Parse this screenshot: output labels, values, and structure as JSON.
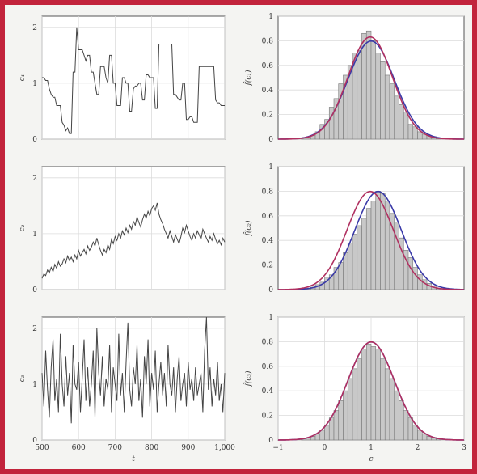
{
  "chart_data": [
    {
      "type": "line",
      "panel": "left-top",
      "xlabel": "t",
      "ylabel": "c₁",
      "xlim": [
        500,
        1000
      ],
      "ylim": [
        0,
        2.2
      ],
      "yticks": [
        0,
        1,
        2
      ],
      "xticks": [
        500,
        600,
        700,
        800,
        900,
        1000
      ],
      "x_tick_labels": [],
      "grid": true,
      "line_color": "#444444",
      "series": [
        {
          "x": [
            500,
            505,
            510,
            515,
            520,
            525,
            530,
            535,
            540,
            545,
            550,
            555,
            560,
            565,
            570,
            575,
            580,
            585,
            590,
            595,
            600,
            605,
            610,
            615,
            620,
            625,
            630,
            635,
            640,
            645,
            650,
            655,
            660,
            665,
            670,
            675,
            680,
            685,
            690,
            695,
            700,
            705,
            710,
            715,
            720,
            725,
            730,
            735,
            740,
            745,
            750,
            755,
            760,
            765,
            770,
            775,
            780,
            785,
            790,
            795,
            800,
            805,
            810,
            815,
            820,
            825,
            830,
            835,
            840,
            845,
            850,
            855,
            860,
            865,
            870,
            875,
            880,
            885,
            890,
            895,
            900,
            905,
            910,
            915,
            920,
            925,
            930,
            935,
            940,
            945,
            950,
            955,
            960,
            965,
            970,
            975,
            980,
            985,
            990,
            995,
            1000
          ],
          "values": [
            1.1,
            1.1,
            1.05,
            1.05,
            0.9,
            0.8,
            0.75,
            0.75,
            0.6,
            0.6,
            0.6,
            0.3,
            0.25,
            0.15,
            0.2,
            0.1,
            0.1,
            1.2,
            1.2,
            2.0,
            1.6,
            1.6,
            1.6,
            1.5,
            1.4,
            1.5,
            1.5,
            1.2,
            1.2,
            1.0,
            0.8,
            0.8,
            1.3,
            1.3,
            1.3,
            1.1,
            1.0,
            1.5,
            1.5,
            1.0,
            1.0,
            0.6,
            0.6,
            0.6,
            1.1,
            1.1,
            1.0,
            1.0,
            0.5,
            0.5,
            0.9,
            0.95,
            0.95,
            1.0,
            1.0,
            0.7,
            0.7,
            1.15,
            1.15,
            1.1,
            1.1,
            1.1,
            0.55,
            0.55,
            1.7,
            1.7,
            1.7,
            1.7,
            1.7,
            1.7,
            1.7,
            1.7,
            0.8,
            0.8,
            0.75,
            0.7,
            0.7,
            1.0,
            1.0,
            0.35,
            0.35,
            0.4,
            0.4,
            0.3,
            0.3,
            0.3,
            1.3,
            1.3,
            1.3,
            1.3,
            1.3,
            1.3,
            1.3,
            1.3,
            1.3,
            0.7,
            0.65,
            0.65,
            0.6,
            0.6,
            0.6
          ]
        }
      ]
    },
    {
      "type": "bar",
      "panel": "right-top",
      "xlabel": "",
      "ylabel": "f̂(c₁)",
      "xlim": [
        -1,
        3
      ],
      "ylim": [
        0,
        1
      ],
      "yticks": [
        0,
        0.2,
        0.4,
        0.6,
        0.8,
        1
      ],
      "y_tick_labels": [
        "0",
        "0.2",
        "0.4",
        "0.6",
        "0.8",
        "1"
      ],
      "x_tick_labels": [],
      "grid": true,
      "bar_width": 0.1,
      "bins": [
        -0.45,
        -0.35,
        -0.25,
        -0.15,
        -0.05,
        0.05,
        0.15,
        0.25,
        0.35,
        0.45,
        0.55,
        0.65,
        0.75,
        0.85,
        0.95,
        1.05,
        1.15,
        1.25,
        1.35,
        1.45,
        1.55,
        1.65,
        1.75,
        1.85,
        1.95,
        2.05,
        2.15,
        2.25,
        2.35,
        2.45
      ],
      "values": [
        0.01,
        0.02,
        0.03,
        0.06,
        0.12,
        0.16,
        0.26,
        0.33,
        0.45,
        0.52,
        0.6,
        0.7,
        0.72,
        0.86,
        0.88,
        0.8,
        0.7,
        0.63,
        0.52,
        0.45,
        0.35,
        0.28,
        0.22,
        0.12,
        0.1,
        0.06,
        0.04,
        0.03,
        0.02,
        0.01
      ],
      "bar_color": "#c8c8c8",
      "curves": [
        {
          "color": "#3a3aa8",
          "mean": 1.0,
          "sd": 0.5
        },
        {
          "color": "#b03060",
          "mean": 0.98,
          "sd": 0.48
        }
      ]
    },
    {
      "type": "line",
      "panel": "left-middle",
      "xlabel": "t",
      "ylabel": "c₂",
      "xlim": [
        500,
        1000
      ],
      "ylim": [
        0,
        2.2
      ],
      "yticks": [
        0,
        1,
        2
      ],
      "xticks": [
        500,
        600,
        700,
        800,
        900,
        1000
      ],
      "x_tick_labels": [],
      "grid": true,
      "line_color": "#444444",
      "series": [
        {
          "x": [
            500,
            505,
            510,
            515,
            520,
            525,
            530,
            535,
            540,
            545,
            550,
            555,
            560,
            565,
            570,
            575,
            580,
            585,
            590,
            595,
            600,
            605,
            610,
            615,
            620,
            625,
            630,
            635,
            640,
            645,
            650,
            655,
            660,
            665,
            670,
            675,
            680,
            685,
            690,
            695,
            700,
            705,
            710,
            715,
            720,
            725,
            730,
            735,
            740,
            745,
            750,
            755,
            760,
            765,
            770,
            775,
            780,
            785,
            790,
            795,
            800,
            805,
            810,
            815,
            820,
            825,
            830,
            835,
            840,
            845,
            850,
            855,
            860,
            865,
            870,
            875,
            880,
            885,
            890,
            895,
            900,
            905,
            910,
            915,
            920,
            925,
            930,
            935,
            940,
            945,
            950,
            955,
            960,
            965,
            970,
            975,
            980,
            985,
            990,
            995,
            1000
          ],
          "values": [
            0.2,
            0.28,
            0.25,
            0.35,
            0.3,
            0.4,
            0.32,
            0.45,
            0.38,
            0.5,
            0.42,
            0.46,
            0.55,
            0.48,
            0.6,
            0.52,
            0.58,
            0.5,
            0.62,
            0.55,
            0.7,
            0.6,
            0.66,
            0.72,
            0.64,
            0.78,
            0.7,
            0.76,
            0.85,
            0.78,
            0.92,
            0.8,
            0.7,
            0.62,
            0.72,
            0.66,
            0.8,
            0.72,
            0.9,
            0.82,
            0.95,
            0.88,
            1.0,
            0.92,
            1.05,
            0.98,
            1.1,
            1.02,
            1.15,
            1.08,
            1.22,
            1.15,
            1.3,
            1.2,
            1.12,
            1.25,
            1.35,
            1.28,
            1.4,
            1.32,
            1.45,
            1.5,
            1.42,
            1.55,
            1.35,
            1.25,
            1.18,
            1.08,
            1.0,
            0.92,
            1.05,
            0.95,
            0.85,
            0.98,
            0.9,
            0.82,
            0.95,
            1.1,
            1.02,
            1.15,
            1.05,
            0.95,
            0.88,
            1.0,
            0.92,
            1.05,
            0.98,
            0.9,
            1.08,
            1.0,
            0.92,
            0.85,
            0.95,
            0.88,
            1.0,
            0.9,
            0.82,
            0.88,
            0.8,
            0.92,
            0.85
          ]
        }
      ]
    },
    {
      "type": "bar",
      "panel": "right-middle",
      "xlabel": "",
      "ylabel": "f̂(c₂)",
      "xlim": [
        -1,
        3
      ],
      "ylim": [
        0,
        1
      ],
      "yticks": [
        0,
        0.2,
        0.4,
        0.6,
        0.8,
        1
      ],
      "y_tick_labels": [
        "0",
        "0.2",
        "0.4",
        "0.6",
        "0.8",
        "1"
      ],
      "x_tick_labels": [],
      "grid": true,
      "bar_width": 0.1,
      "bins": [
        -0.45,
        -0.35,
        -0.25,
        -0.15,
        -0.05,
        0.05,
        0.15,
        0.25,
        0.35,
        0.45,
        0.55,
        0.65,
        0.75,
        0.85,
        0.95,
        1.05,
        1.15,
        1.25,
        1.35,
        1.45,
        1.55,
        1.65,
        1.75,
        1.85,
        1.95,
        2.05,
        2.15,
        2.25,
        2.35,
        2.45
      ],
      "values": [
        0.01,
        0.01,
        0.02,
        0.04,
        0.06,
        0.1,
        0.12,
        0.18,
        0.22,
        0.3,
        0.38,
        0.45,
        0.52,
        0.58,
        0.66,
        0.72,
        0.8,
        0.78,
        0.72,
        0.62,
        0.55,
        0.42,
        0.32,
        0.26,
        0.18,
        0.12,
        0.08,
        0.05,
        0.03,
        0.01
      ],
      "bar_color": "#c8c8c8",
      "curves": [
        {
          "color": "#3a3aa8",
          "mean": 1.15,
          "sd": 0.5
        },
        {
          "color": "#b03060",
          "mean": 0.98,
          "sd": 0.5
        }
      ]
    },
    {
      "type": "line",
      "panel": "left-bottom",
      "xlabel": "t",
      "ylabel": "c₃",
      "xlim": [
        500,
        1000
      ],
      "ylim": [
        0,
        2.2
      ],
      "yticks": [
        0,
        1,
        2
      ],
      "xticks": [
        500,
        600,
        700,
        800,
        900,
        1000
      ],
      "x_tick_labels": [
        "500",
        "600",
        "700",
        "800",
        "900",
        "1,000"
      ],
      "grid": true,
      "line_color": "#444444",
      "series": [
        {
          "x": [
            500,
            505,
            510,
            515,
            520,
            525,
            530,
            535,
            540,
            545,
            550,
            555,
            560,
            565,
            570,
            575,
            580,
            585,
            590,
            595,
            600,
            605,
            610,
            615,
            620,
            625,
            630,
            635,
            640,
            645,
            650,
            655,
            660,
            665,
            670,
            675,
            680,
            685,
            690,
            695,
            700,
            705,
            710,
            715,
            720,
            725,
            730,
            735,
            740,
            745,
            750,
            755,
            760,
            765,
            770,
            775,
            780,
            785,
            790,
            795,
            800,
            805,
            810,
            815,
            820,
            825,
            830,
            835,
            840,
            845,
            850,
            855,
            860,
            865,
            870,
            875,
            880,
            885,
            890,
            895,
            900,
            905,
            910,
            915,
            920,
            925,
            930,
            935,
            940,
            945,
            950,
            955,
            960,
            965,
            970,
            975,
            980,
            985,
            990,
            995,
            1000
          ],
          "values": [
            1.2,
            0.6,
            1.6,
            0.9,
            0.4,
            1.3,
            1.8,
            0.7,
            1.1,
            0.5,
            1.9,
            1.0,
            0.6,
            1.5,
            0.8,
            1.2,
            0.3,
            1.7,
            1.0,
            0.9,
            1.4,
            0.5,
            1.1,
            1.8,
            0.7,
            1.3,
            0.6,
            1.0,
            1.6,
            0.4,
            2.0,
            1.2,
            0.8,
            1.5,
            0.6,
            1.1,
            0.9,
            1.7,
            0.5,
            1.3,
            1.0,
            0.7,
            1.9,
            0.8,
            1.2,
            0.5,
            1.4,
            2.1,
            0.9,
            0.6,
            1.3,
            1.0,
            1.7,
            0.7,
            1.1,
            0.4,
            1.5,
            1.0,
            1.8,
            0.6,
            1.2,
            0.9,
            1.6,
            0.5,
            1.0,
            1.4,
            0.8,
            1.2,
            0.6,
            1.7,
            1.0,
            0.8,
            1.3,
            0.5,
            1.1,
            1.5,
            0.7,
            1.0,
            1.2,
            0.6,
            1.4,
            0.9,
            1.1,
            0.7,
            1.3,
            0.8,
            1.0,
            1.2,
            0.5,
            1.6,
            2.2,
            0.9,
            1.3,
            0.6,
            1.1,
            0.8,
            1.4,
            0.7,
            1.0,
            0.5,
            1.2
          ]
        }
      ]
    },
    {
      "type": "bar",
      "panel": "right-bottom",
      "xlabel": "c",
      "ylabel": "f̂(c₃)",
      "xlim": [
        -1,
        3
      ],
      "ylim": [
        0,
        1
      ],
      "yticks": [
        0,
        0.2,
        0.4,
        0.6,
        0.8,
        1
      ],
      "y_tick_labels": [
        "0",
        "0.2",
        "0.4",
        "0.6",
        "0.8",
        "1"
      ],
      "xticks": [
        -1,
        0,
        1,
        2,
        3
      ],
      "x_tick_labels": [
        "−1",
        "0",
        "1",
        "2",
        "3"
      ],
      "grid": true,
      "bar_width": 0.1,
      "bins": [
        -0.45,
        -0.35,
        -0.25,
        -0.15,
        -0.05,
        0.05,
        0.15,
        0.25,
        0.35,
        0.45,
        0.55,
        0.65,
        0.75,
        0.85,
        0.95,
        1.05,
        1.15,
        1.25,
        1.35,
        1.45,
        1.55,
        1.65,
        1.75,
        1.85,
        1.95,
        2.05,
        2.15,
        2.25,
        2.35,
        2.45
      ],
      "values": [
        0.01,
        0.02,
        0.03,
        0.05,
        0.08,
        0.12,
        0.18,
        0.24,
        0.32,
        0.4,
        0.5,
        0.58,
        0.66,
        0.74,
        0.78,
        0.76,
        0.74,
        0.66,
        0.58,
        0.5,
        0.4,
        0.32,
        0.24,
        0.18,
        0.12,
        0.08,
        0.05,
        0.03,
        0.02,
        0.01
      ],
      "bar_color": "#c8c8c8",
      "curves": [
        {
          "color": "#3a3aa8",
          "mean": 1.0,
          "sd": 0.5
        },
        {
          "color": "#b03060",
          "mean": 1.0,
          "sd": 0.5
        }
      ]
    }
  ]
}
